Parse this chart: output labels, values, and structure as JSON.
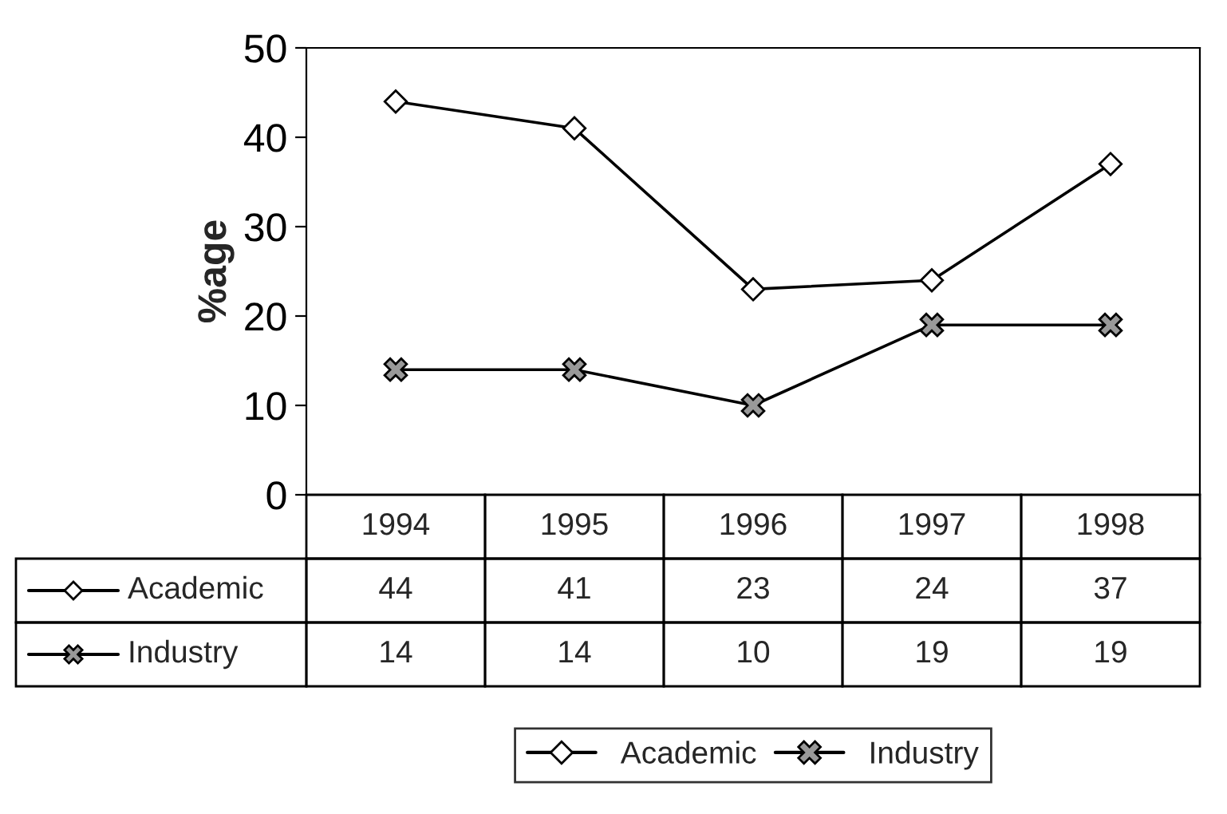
{
  "chart_data": {
    "type": "line",
    "ylabel": "%age",
    "categories": [
      "1994",
      "1995",
      "1996",
      "1997",
      "1998"
    ],
    "series": [
      {
        "name": "Academic",
        "color": "#000000",
        "marker": "diamond",
        "values": [
          44,
          41,
          23,
          24,
          37
        ]
      },
      {
        "name": "Industry",
        "color": "#000000",
        "marker": "cross",
        "values": [
          14,
          14,
          10,
          19,
          19
        ]
      }
    ],
    "ylim": [
      0,
      50
    ],
    "yticks": [
      0,
      10,
      20,
      30,
      40,
      50
    ],
    "grid": false,
    "legend": "bottom",
    "data_labels": true,
    "line_style": "solid"
  }
}
